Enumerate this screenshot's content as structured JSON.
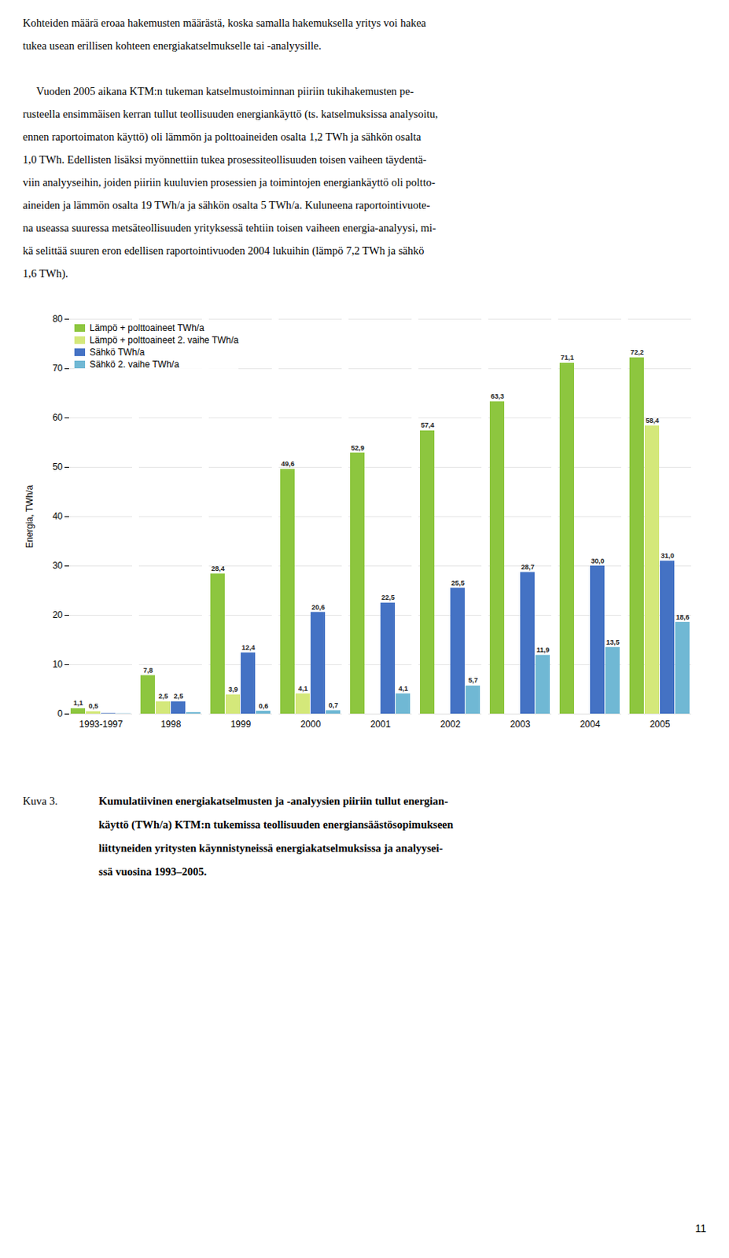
{
  "text_paragraphs": [
    [
      "Kohteiden määrä eroaa hakemusten määrästä, koska samalla hakemuksella yritys voi hakea",
      "tukea usean erillisen kohteen energiakatselmukselle tai -analyysille."
    ],
    [
      "     Vuoden 2005 aikana KTM:n tukeman katselmustoiminnan piiriin tukihakemusten pe-",
      "rusteella ensimmäisen kerran tullut teollisuuden energiankäyttö (ts. katselmuksissa analysoitu,",
      "ennen raportoimaton käyttö) oli lämmön ja polttoaineiden osalta 1,2 TWh ja sähkön osalta",
      "1,0 TWh. Edellisten lisäksi myönnettiin tukea prosessiteollisuuden toisen vaiheen täydentä-",
      "viin analyyseihin, joiden piiriin kuuluvien prosessien ja toimintojen energiankäyttö oli poltto-",
      "aineiden ja lämmön osalta 19 TWh/a ja sähkön osalta 5 TWh/a. Kuluneena raportointivuote-",
      "na useassa suuressa metsäteollisuuden yrityksessä tehtiin toisen vaiheen energia-analyysi, mi-",
      "kä selittää suuren eron edellisen raportointivuoden 2004 lukuihin (lämpö 7,2 TWh ja sähkö",
      "1,6 TWh)."
    ]
  ],
  "chart_data": {
    "type": "bar",
    "ylabel": "Energia, TWh/a",
    "categories": [
      "1993-1997",
      "1998",
      "1999",
      "2000",
      "2001",
      "2002",
      "2003",
      "2004",
      "2005"
    ],
    "series": [
      {
        "name": "Lämpö + polttoaineet TWh/a",
        "color": "#8dc63f",
        "values": [
          1.1,
          7.8,
          28.4,
          49.6,
          52.9,
          57.4,
          63.3,
          71.1,
          72.2
        ],
        "value_labels": [
          "1,1",
          "7,8",
          "28,4",
          "49,6",
          "52,9",
          "57,4",
          "63,3",
          "71,1",
          "72,2"
        ]
      },
      {
        "name": "Lämpö + polttoaineet 2. vaihe TWh/a",
        "color": "#d4e87a",
        "values": [
          0.5,
          2.5,
          3.9,
          4.1,
          0,
          0,
          0,
          0,
          58.4
        ],
        "value_labels": [
          "0,5",
          "2,5",
          "3,9",
          "4,1",
          null,
          null,
          null,
          null,
          "58,4"
        ]
      },
      {
        "name": "Sähkö TWh/a",
        "color": "#4472c4",
        "values": [
          0.1,
          2.5,
          12.4,
          20.6,
          22.5,
          25.5,
          28.7,
          30.0,
          31.0
        ],
        "value_labels": [
          null,
          "2,5",
          "12,4",
          "20,6",
          "22,5",
          "25,5",
          "28,7",
          "30,0",
          "31,0"
        ]
      },
      {
        "name": "Sähkö 2. vaihe TWh/a",
        "color": "#70b8d4",
        "values": [
          0.05,
          0.3,
          0.6,
          0.7,
          4.1,
          5.7,
          11.9,
          13.5,
          18.6
        ],
        "value_labels": [
          null,
          null,
          "0,6",
          "0,7",
          "4,1",
          "5,7",
          "11,9",
          "13,5",
          "18,6"
        ]
      }
    ],
    "ylim": [
      0,
      80
    ],
    "yticks": [
      0,
      10,
      20,
      30,
      40,
      50,
      60,
      70,
      80
    ],
    "grid": true,
    "legend": "upper left",
    "data_labels": true
  },
  "caption_label": "Kuva 3.",
  "caption_lines": [
    "Kumulatiivinen energiakatselmusten ja -analyysien piiriin tullut energian-",
    "käyttö (TWh/a) KTM:n tukemissa teollisuuden energiansäästösopimukseen",
    "liittyneiden yritysten käynnistyneissä energiakatselmuksissa ja analyysei-",
    "ssä vuosina 1993–2005."
  ],
  "page_number": "11"
}
